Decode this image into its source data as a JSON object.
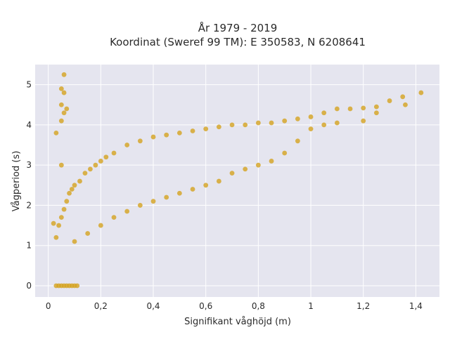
{
  "chart_data": {
    "type": "scatter",
    "title_line1": "År 1979 - 2019",
    "title_line2": "Koordinat (Sweref 99 TM): E 350583, N 6208641",
    "xlabel": "Signifikant våghöjd (m)",
    "ylabel": "Vågperiod (s)",
    "xlim": [
      -0.05,
      1.49
    ],
    "ylim": [
      -0.28,
      5.5
    ],
    "x_ticks": [
      0,
      0.2,
      0.4,
      0.6,
      0.8,
      1,
      1.2,
      1.4
    ],
    "x_tick_labels": [
      "0",
      "0,2",
      "0,4",
      "0,6",
      "0,8",
      "1",
      "1,2",
      "1,4"
    ],
    "y_ticks": [
      0,
      1,
      2,
      3,
      4,
      5
    ],
    "y_tick_labels": [
      "0",
      "1",
      "2",
      "3",
      "4",
      "5"
    ],
    "grid": true,
    "colors": {
      "marker": "#d4a21f",
      "plot_bg": "#e5e5ef",
      "grid": "#ffffff"
    },
    "series": [
      {
        "values": [
          [
            0.02,
            1.55
          ],
          [
            0.03,
            1.2
          ],
          [
            0.04,
            1.5
          ],
          [
            0.05,
            1.7
          ],
          [
            0.06,
            1.9
          ],
          [
            0.07,
            2.1
          ],
          [
            0.08,
            2.3
          ],
          [
            0.09,
            2.4
          ],
          [
            0.1,
            2.5
          ],
          [
            0.12,
            2.6
          ],
          [
            0.14,
            2.8
          ],
          [
            0.16,
            2.9
          ],
          [
            0.18,
            3.0
          ],
          [
            0.2,
            3.1
          ],
          [
            0.22,
            3.2
          ],
          [
            0.25,
            3.3
          ],
          [
            0.3,
            3.5
          ],
          [
            0.35,
            3.6
          ],
          [
            0.4,
            3.7
          ],
          [
            0.45,
            3.75
          ],
          [
            0.5,
            3.8
          ],
          [
            0.55,
            3.85
          ],
          [
            0.6,
            3.9
          ],
          [
            0.65,
            3.95
          ],
          [
            0.7,
            4.0
          ],
          [
            0.75,
            4.0
          ],
          [
            0.8,
            4.05
          ],
          [
            0.85,
            4.05
          ],
          [
            0.9,
            4.1
          ],
          [
            0.95,
            4.15
          ],
          [
            1.0,
            4.2
          ],
          [
            1.05,
            4.3
          ],
          [
            1.1,
            4.4
          ],
          [
            1.15,
            4.4
          ],
          [
            1.2,
            4.42
          ],
          [
            1.25,
            4.45
          ],
          [
            1.3,
            4.6
          ],
          [
            1.35,
            4.7
          ],
          [
            1.36,
            4.5
          ],
          [
            1.42,
            4.8
          ],
          [
            0.05,
            4.9
          ],
          [
            0.06,
            4.8
          ],
          [
            0.05,
            4.5
          ],
          [
            0.06,
            4.3
          ],
          [
            0.05,
            4.1
          ],
          [
            0.07,
            4.4
          ],
          [
            0.06,
            5.25
          ],
          [
            0.03,
            3.8
          ],
          [
            0.05,
            3.0
          ],
          [
            0.1,
            1.1
          ],
          [
            0.15,
            1.3
          ],
          [
            0.2,
            1.5
          ],
          [
            0.25,
            1.7
          ],
          [
            0.3,
            1.85
          ],
          [
            0.35,
            2.0
          ],
          [
            0.4,
            2.1
          ],
          [
            0.45,
            2.2
          ],
          [
            0.5,
            2.3
          ],
          [
            0.55,
            2.4
          ],
          [
            0.6,
            2.5
          ],
          [
            0.65,
            2.6
          ],
          [
            0.7,
            2.8
          ],
          [
            0.75,
            2.9
          ],
          [
            0.8,
            3.0
          ],
          [
            0.85,
            3.1
          ],
          [
            0.9,
            3.3
          ],
          [
            0.95,
            3.6
          ],
          [
            1.0,
            3.9
          ],
          [
            1.05,
            4.0
          ],
          [
            1.1,
            4.05
          ],
          [
            1.2,
            4.1
          ],
          [
            1.25,
            4.3
          ],
          [
            0.03,
            0.0
          ],
          [
            0.04,
            0.0
          ],
          [
            0.05,
            0.0
          ],
          [
            0.06,
            0.0
          ],
          [
            0.07,
            0.0
          ],
          [
            0.08,
            0.0
          ],
          [
            0.09,
            0.0
          ],
          [
            0.1,
            0.0
          ],
          [
            0.11,
            0.0
          ]
        ]
      }
    ]
  }
}
